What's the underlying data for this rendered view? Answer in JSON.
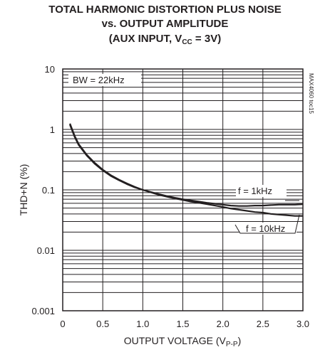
{
  "chart_data": {
    "type": "line",
    "title_line1": "TOTAL HARMONIC DISTORTION PLUS NOISE",
    "title_line2": "vs. OUTPUT AMPLITUDE",
    "title_line3_pre": "(AUX INPUT, V",
    "title_line3_sub": "CC",
    "title_line3_post": " = 3V)",
    "xlabel_pre": "OUTPUT VOLTAGE (V",
    "xlabel_sub": "P-P",
    "xlabel_post": ")",
    "ylabel": "THD+N (%)",
    "xlim": [
      0,
      3.0
    ],
    "ylim": [
      0.001,
      10
    ],
    "y_scale": "log",
    "x_ticks": [
      "0",
      "0.5",
      "1.0",
      "1.5",
      "2.0",
      "2.5",
      "3.0"
    ],
    "y_ticks": [
      "0.001",
      "0.01",
      "0.1",
      "1",
      "10"
    ],
    "grid": true,
    "bw_annotation": "BW = 22kHz",
    "figure_tag": "MAX4060 toc15",
    "series": [
      {
        "name": "f = 1kHz",
        "x": [
          0.09,
          0.15,
          0.2,
          0.3,
          0.4,
          0.5,
          0.6,
          0.7,
          0.8,
          0.9,
          1.0,
          1.1,
          1.2,
          1.3,
          1.4,
          1.5,
          1.6,
          1.7,
          1.8,
          1.9,
          2.0,
          2.1,
          2.2,
          2.3,
          2.4,
          2.5,
          2.6,
          2.7,
          2.8,
          2.9,
          3.0
        ],
        "y": [
          1.2,
          0.75,
          0.55,
          0.37,
          0.27,
          0.21,
          0.17,
          0.145,
          0.125,
          0.11,
          0.1,
          0.092,
          0.085,
          0.079,
          0.074,
          0.07,
          0.067,
          0.064,
          0.061,
          0.059,
          0.057,
          0.055,
          0.054,
          0.054,
          0.055,
          0.055,
          0.056,
          0.057,
          0.057,
          0.057,
          0.058
        ]
      },
      {
        "name": "f = 10kHz",
        "x": [
          0.09,
          0.15,
          0.2,
          0.3,
          0.4,
          0.5,
          0.6,
          0.7,
          0.8,
          0.9,
          1.0,
          1.1,
          1.2,
          1.3,
          1.4,
          1.5,
          1.6,
          1.7,
          1.8,
          1.9,
          2.0,
          2.1,
          2.2,
          2.3,
          2.4,
          2.5,
          2.6,
          2.7,
          2.8,
          2.9,
          3.0
        ],
        "y": [
          1.25,
          0.78,
          0.57,
          0.38,
          0.28,
          0.215,
          0.175,
          0.148,
          0.128,
          0.112,
          0.1,
          0.091,
          0.083,
          0.077,
          0.072,
          0.068,
          0.064,
          0.061,
          0.058,
          0.055,
          0.052,
          0.049,
          0.047,
          0.045,
          0.043,
          0.042,
          0.04,
          0.039,
          0.038,
          0.037,
          0.037
        ]
      }
    ]
  }
}
